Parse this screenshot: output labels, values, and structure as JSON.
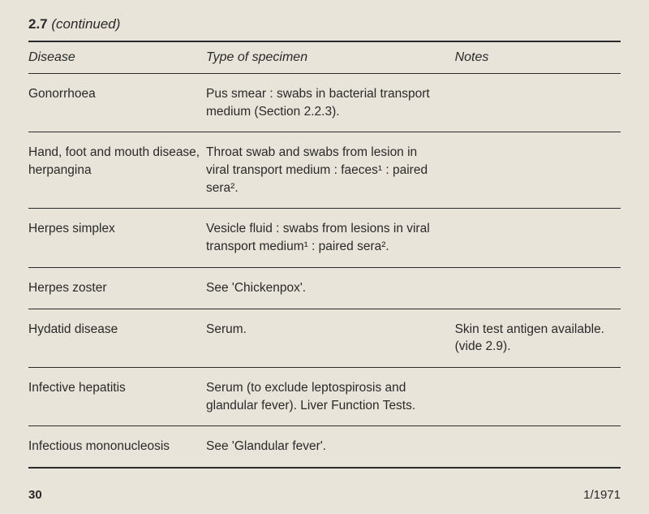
{
  "header": {
    "section": "2.7",
    "continued": "(continued)"
  },
  "columns": {
    "c1": "Disease",
    "c2": "Type of specimen",
    "c3": "Notes"
  },
  "rows": [
    {
      "disease": "Gonorrhoea",
      "specimen": "Pus smear : swabs in bacterial transport medium (Section 2.2.3).",
      "notes": ""
    },
    {
      "disease": "Hand, foot and mouth disease, herpangina",
      "specimen": "Throat swab and swabs from lesion in viral transport medium : faeces¹ : paired sera².",
      "notes": ""
    },
    {
      "disease": "Herpes simplex",
      "specimen": "Vesicle fluid : swabs from lesions in viral transport medium¹ : paired sera².",
      "notes": ""
    },
    {
      "disease": "Herpes zoster",
      "specimen": "See 'Chickenpox'.",
      "notes": ""
    },
    {
      "disease": "Hydatid disease",
      "specimen": "Serum.",
      "notes": "Skin test antigen available. (vide 2.9)."
    },
    {
      "disease": "Infective hepatitis",
      "specimen": "Serum (to exclude leptospirosis and glandular fever). Liver Function Tests.",
      "notes": ""
    },
    {
      "disease": "Infectious mononucleosis",
      "specimen": "See 'Glandular fever'.",
      "notes": ""
    }
  ],
  "footer": {
    "page": "30",
    "date": "1/1971"
  }
}
